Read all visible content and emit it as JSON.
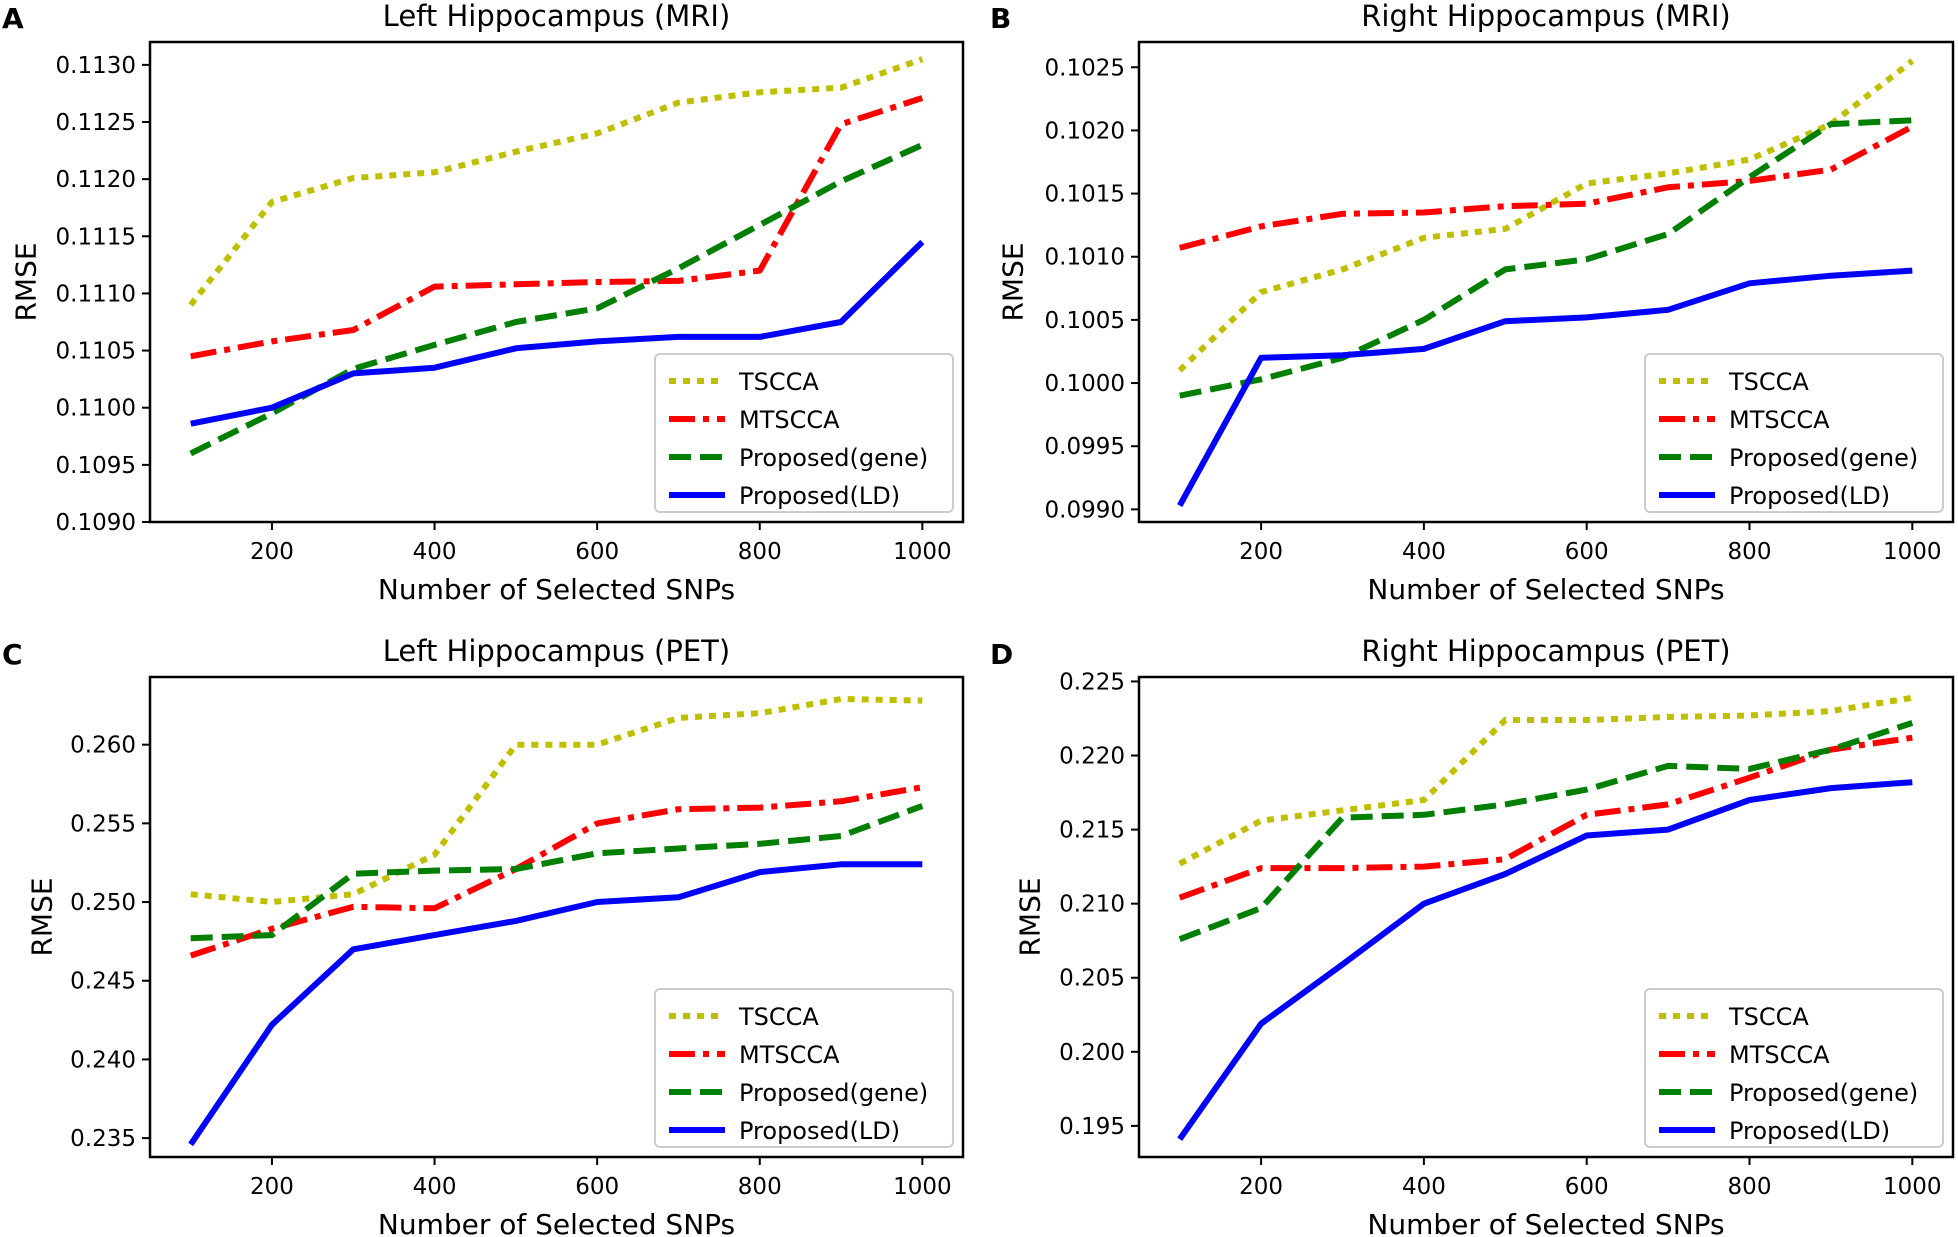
{
  "figure": {
    "description_free": true
  },
  "chart_data": [
    {
      "panel": "A",
      "type": "line",
      "title": "Left Hippocampus (MRI)",
      "xlabel": "Number of Selected SNPs",
      "ylabel": "RMSE",
      "xlim": [
        50,
        1050
      ],
      "ylim": [
        0.109,
        0.1132
      ],
      "xticks": [
        200,
        400,
        600,
        800,
        1000
      ],
      "xtick_labels": [
        "200",
        "400",
        "600",
        "800",
        "1000"
      ],
      "yticks": [
        0.109,
        0.1095,
        0.11,
        0.1105,
        0.111,
        0.1115,
        0.112,
        0.1125,
        0.113
      ],
      "ytick_labels": [
        "0.1090",
        "0.1095",
        "0.1100",
        "0.1105",
        "0.1110",
        "0.1115",
        "0.1120",
        "0.1125",
        "0.1130"
      ],
      "legend_position": "lower-right",
      "x": [
        100,
        200,
        300,
        400,
        500,
        600,
        700,
        800,
        900,
        1000
      ],
      "series": [
        {
          "name": "TSCCA",
          "color": "#bfbf00",
          "style": "dotted",
          "values": [
            0.1109,
            0.1118,
            0.11201,
            0.11206,
            0.11224,
            0.1124,
            0.11267,
            0.11276,
            0.1128,
            0.11305
          ]
        },
        {
          "name": "MTSCCA",
          "color": "#ff0000",
          "style": "dashdot",
          "values": [
            0.11045,
            0.11058,
            0.11068,
            0.11106,
            0.11108,
            0.1111,
            0.11111,
            0.1112,
            0.11248,
            0.11271
          ]
        },
        {
          "name": "Proposed(gene)",
          "color": "#007f00",
          "style": "dashed",
          "values": [
            0.1096,
            0.10995,
            0.11034,
            0.11055,
            0.11075,
            0.11087,
            0.11122,
            0.1116,
            0.11198,
            0.1123
          ]
        },
        {
          "name": "Proposed(LD)",
          "color": "#0000ff",
          "style": "solid",
          "values": [
            0.10986,
            0.11,
            0.1103,
            0.11035,
            0.11052,
            0.11058,
            0.11062,
            0.11062,
            0.11075,
            0.11145
          ]
        }
      ]
    },
    {
      "panel": "B",
      "type": "line",
      "title": "Right Hippocampus (MRI)",
      "xlabel": "Number of Selected SNPs",
      "ylabel": "RMSE",
      "xlim": [
        50,
        1050
      ],
      "ylim": [
        0.0989,
        0.1027
      ],
      "xticks": [
        200,
        400,
        600,
        800,
        1000
      ],
      "xtick_labels": [
        "200",
        "400",
        "600",
        "800",
        "1000"
      ],
      "yticks": [
        0.099,
        0.0995,
        0.1,
        0.1005,
        0.101,
        0.1015,
        0.102,
        0.1025
      ],
      "ytick_labels": [
        "0.0990",
        "0.0995",
        "0.1000",
        "0.1005",
        "0.1010",
        "0.1015",
        "0.1020",
        "0.1025"
      ],
      "legend_position": "lower-right",
      "x": [
        100,
        200,
        300,
        400,
        500,
        600,
        700,
        800,
        900,
        1000
      ],
      "series": [
        {
          "name": "TSCCA",
          "color": "#bfbf00",
          "style": "dotted",
          "values": [
            0.1001,
            0.10072,
            0.1009,
            0.10115,
            0.10122,
            0.10158,
            0.10166,
            0.10177,
            0.10205,
            0.10255
          ]
        },
        {
          "name": "MTSCCA",
          "color": "#ff0000",
          "style": "dashdot",
          "values": [
            0.10107,
            0.10124,
            0.10134,
            0.10135,
            0.1014,
            0.10142,
            0.10155,
            0.1016,
            0.10169,
            0.10203
          ]
        },
        {
          "name": "Proposed(gene)",
          "color": "#007f00",
          "style": "dashed",
          "values": [
            0.0999,
            0.10003,
            0.1002,
            0.1005,
            0.1009,
            0.10098,
            0.10118,
            0.10163,
            0.10205,
            0.10208
          ]
        },
        {
          "name": "Proposed(LD)",
          "color": "#0000ff",
          "style": "solid",
          "values": [
            0.09903,
            0.1002,
            0.10022,
            0.10027,
            0.10049,
            0.10052,
            0.10058,
            0.10079,
            0.10085,
            0.10089
          ]
        }
      ]
    },
    {
      "panel": "C",
      "type": "line",
      "title": "Left Hippocampus (PET)",
      "xlabel": "Number of Selected SNPs",
      "ylabel": "RMSE",
      "xlim": [
        50,
        1050
      ],
      "ylim": [
        0.2338,
        0.2643
      ],
      "xticks": [
        200,
        400,
        600,
        800,
        1000
      ],
      "xtick_labels": [
        "200",
        "400",
        "600",
        "800",
        "1000"
      ],
      "yticks": [
        0.235,
        0.24,
        0.245,
        0.25,
        0.255,
        0.26
      ],
      "ytick_labels": [
        "0.235",
        "0.240",
        "0.245",
        "0.250",
        "0.255",
        "0.260"
      ],
      "legend_position": "lower-right",
      "x": [
        100,
        200,
        300,
        400,
        500,
        600,
        700,
        800,
        900,
        1000
      ],
      "series": [
        {
          "name": "TSCCA",
          "color": "#bfbf00",
          "style": "dotted",
          "values": [
            0.2505,
            0.25,
            0.2505,
            0.253,
            0.26,
            0.26,
            0.2617,
            0.262,
            0.2629,
            0.2628
          ]
        },
        {
          "name": "MTSCCA",
          "color": "#ff0000",
          "style": "dashdot",
          "values": [
            0.2466,
            0.2483,
            0.2497,
            0.2496,
            0.2521,
            0.255,
            0.2559,
            0.256,
            0.2564,
            0.2573
          ]
        },
        {
          "name": "Proposed(gene)",
          "color": "#007f00",
          "style": "dashed",
          "values": [
            0.2477,
            0.2479,
            0.2518,
            0.252,
            0.2521,
            0.2531,
            0.2534,
            0.2537,
            0.2542,
            0.2561
          ]
        },
        {
          "name": "Proposed(LD)",
          "color": "#0000ff",
          "style": "solid",
          "values": [
            0.2346,
            0.2422,
            0.247,
            0.2479,
            0.2488,
            0.25,
            0.2503,
            0.2519,
            0.2524,
            0.2524
          ]
        }
      ]
    },
    {
      "panel": "D",
      "type": "line",
      "title": "Right Hippocampus (PET)",
      "xlabel": "Number of Selected SNPs",
      "ylabel": "RMSE",
      "xlim": [
        50,
        1050
      ],
      "ylim": [
        0.1929,
        0.2253
      ],
      "xticks": [
        200,
        400,
        600,
        800,
        1000
      ],
      "xtick_labels": [
        "200",
        "400",
        "600",
        "800",
        "1000"
      ],
      "yticks": [
        0.195,
        0.2,
        0.205,
        0.21,
        0.215,
        0.22,
        0.225
      ],
      "ytick_labels": [
        "0.195",
        "0.200",
        "0.205",
        "0.210",
        "0.215",
        "0.220",
        "0.225"
      ],
      "legend_position": "lower-right",
      "x": [
        100,
        200,
        300,
        400,
        500,
        600,
        700,
        800,
        900,
        1000
      ],
      "series": [
        {
          "name": "TSCCA",
          "color": "#bfbf00",
          "style": "dotted",
          "values": [
            0.2127,
            0.2156,
            0.2163,
            0.217,
            0.2224,
            0.2224,
            0.2226,
            0.2227,
            0.223,
            0.2239
          ]
        },
        {
          "name": "MTSCCA",
          "color": "#ff0000",
          "style": "dashdot",
          "values": [
            0.2104,
            0.2124,
            0.2124,
            0.2125,
            0.213,
            0.216,
            0.2167,
            0.2185,
            0.2204,
            0.2212
          ]
        },
        {
          "name": "Proposed(gene)",
          "color": "#007f00",
          "style": "dashed",
          "values": [
            0.2076,
            0.2097,
            0.2158,
            0.216,
            0.2167,
            0.2177,
            0.2193,
            0.2191,
            0.2204,
            0.2222
          ]
        },
        {
          "name": "Proposed(LD)",
          "color": "#0000ff",
          "style": "solid",
          "values": [
            0.1941,
            0.2019,
            0.2059,
            0.21,
            0.212,
            0.2146,
            0.215,
            0.217,
            0.2178,
            0.2182
          ]
        }
      ]
    }
  ]
}
